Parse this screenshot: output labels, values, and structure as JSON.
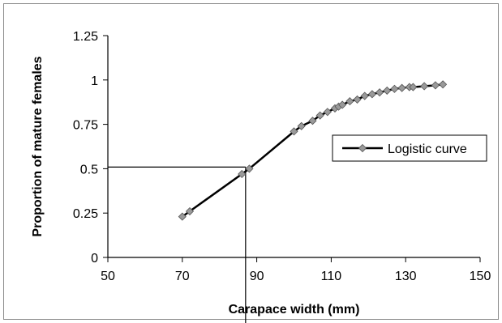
{
  "chart_data": {
    "type": "line",
    "xlabel": "Carapace width (mm)",
    "ylabel": "Proportion of mature females",
    "xlim": [
      50,
      150
    ],
    "ylim": [
      0,
      1.25
    ],
    "x_ticks": [
      "50",
      "70",
      "90",
      "110",
      "130",
      "150"
    ],
    "y_ticks": [
      "0",
      "0.25",
      "0.5",
      "0.75",
      "1",
      "1.25"
    ],
    "grid": false,
    "legend_position": "right",
    "series": [
      {
        "name": "Logistic curve",
        "color": "#000000",
        "marker_color": "#9a9a9a",
        "x": [
          70,
          72,
          86,
          88,
          100,
          102,
          105,
          107,
          109,
          111,
          112,
          113,
          115,
          117,
          119,
          121,
          123,
          125,
          127,
          129,
          131,
          132,
          135,
          138,
          140
        ],
        "y": [
          0.23,
          0.26,
          0.47,
          0.5,
          0.71,
          0.74,
          0.77,
          0.8,
          0.82,
          0.84,
          0.85,
          0.86,
          0.88,
          0.89,
          0.91,
          0.92,
          0.93,
          0.94,
          0.95,
          0.955,
          0.96,
          0.96,
          0.965,
          0.97,
          0.975
        ]
      }
    ],
    "reference_lines": {
      "x50": 87,
      "y50": 0.5
    }
  }
}
